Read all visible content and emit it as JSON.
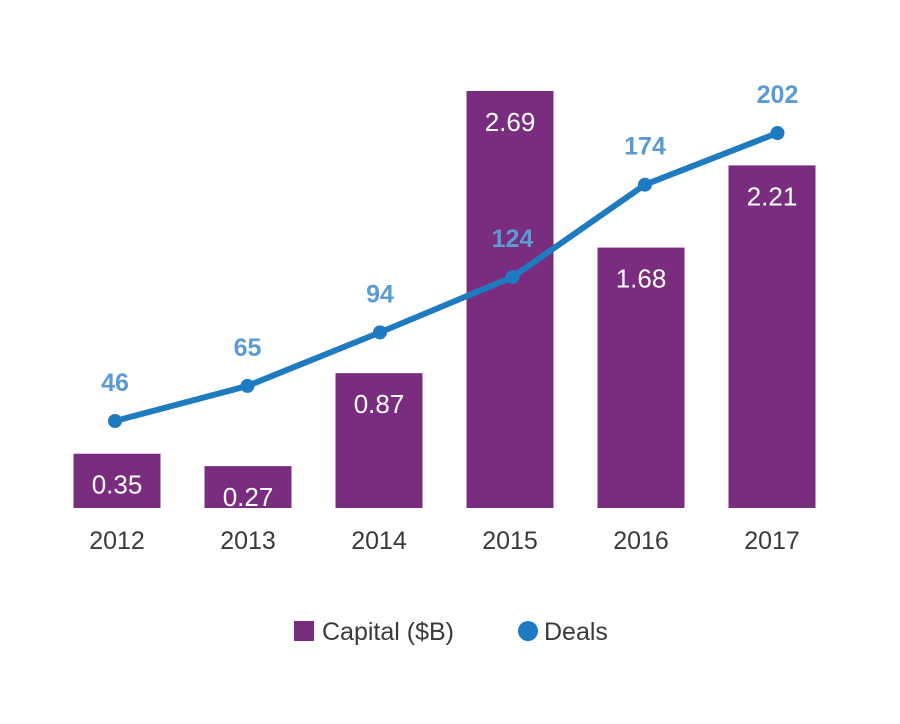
{
  "chart_data": {
    "type": "bar",
    "categories": [
      "2012",
      "2013",
      "2014",
      "2015",
      "2016",
      "2017"
    ],
    "series": [
      {
        "name": "Capital ($B)",
        "type": "bar",
        "values": [
          0.35,
          0.27,
          0.87,
          2.69,
          1.68,
          2.21
        ],
        "labels": [
          "0.35",
          "0.27",
          "0.87",
          "2.69",
          "1.68",
          "2.21"
        ],
        "color": "#7a2d7f",
        "axis": "left"
      },
      {
        "name": "Deals",
        "type": "line",
        "values": [
          46,
          65,
          94,
          124,
          174,
          202
        ],
        "labels": [
          "46",
          "65",
          "94",
          "124",
          "174",
          "202"
        ],
        "color": "#1f7bc0",
        "label_color": "#5b9bd5",
        "axis": "right"
      }
    ],
    "y_left_range": [
      0,
      2.69
    ],
    "y_right_range": [
      46,
      202
    ],
    "grid": false,
    "legend_placement": "bottom-center",
    "title": "",
    "xlabel": "",
    "ylabel": ""
  }
}
